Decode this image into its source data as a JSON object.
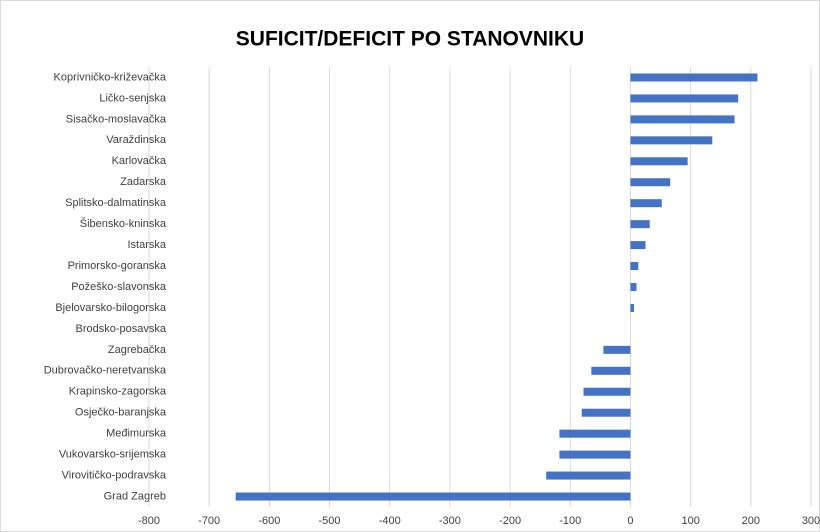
{
  "chart_data": {
    "type": "bar",
    "title": "SUFICIT/DEFICIT PO STANOVNIKU",
    "categories": [
      "Koprivničko-križevačka",
      "Ličko-senjska",
      "Sisačko-moslavačka",
      "Varaždinska",
      "Karlovačka",
      "Zadarska",
      "Splitsko-dalmatinska",
      "Šibensko-kninska",
      "Istarska",
      "Primorsko-goranska",
      "Požeško-slavonska",
      "Bjelovarsko-bilogorska",
      "Brodsko-posavska",
      "Zagrebačka",
      "Dubrovačko-neretvanska",
      "Krapinsko-zagorska",
      "Osječko-baranjska",
      "Međimurska",
      "Vukovarsko-srijemska",
      "Virovitičko-podravska",
      "Grad Zagreb"
    ],
    "values": [
      211,
      179,
      173,
      136,
      95,
      66,
      52,
      32,
      25,
      13,
      10,
      6,
      0,
      -45,
      -65,
      -78,
      -81,
      -118,
      -118,
      -140,
      -656
    ],
    "color": "#4472c4",
    "xlim": [
      -800,
      300
    ],
    "xticks": [
      -800,
      -700,
      -600,
      -500,
      -400,
      -300,
      -200,
      -100,
      0,
      100,
      200,
      300
    ],
    "grid": true
  }
}
